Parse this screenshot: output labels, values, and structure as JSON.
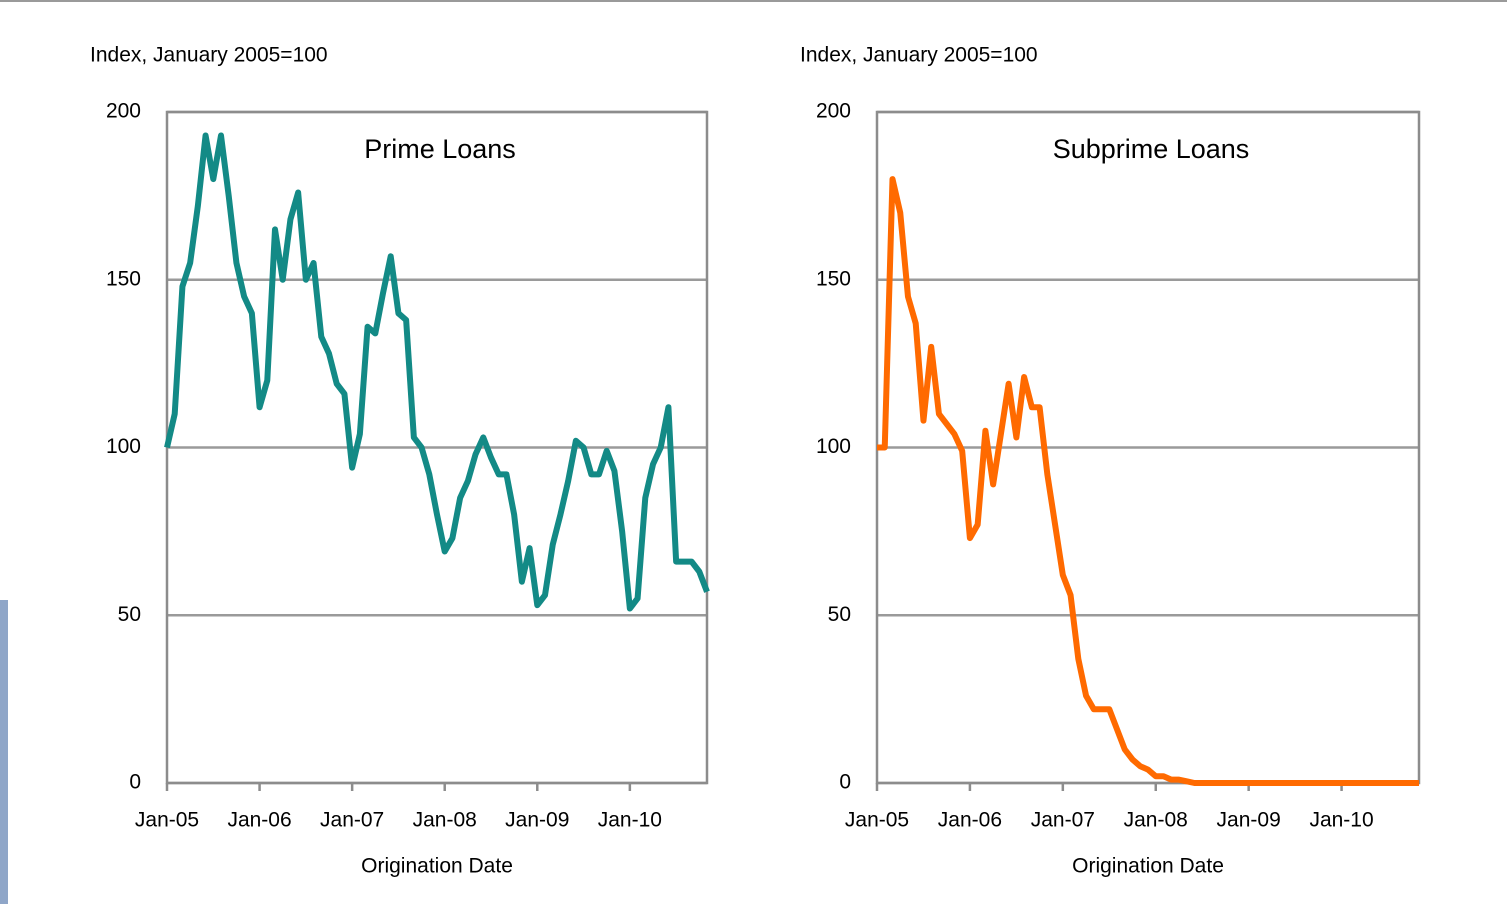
{
  "chart_data": [
    {
      "type": "line",
      "title": "Prime Loans",
      "y_label": "Index, January 2005=100",
      "x_label": "Origination Date",
      "color": "#138a86",
      "x": [
        "2005-01",
        "2005-02",
        "2005-03",
        "2005-04",
        "2005-05",
        "2005-06",
        "2005-07",
        "2005-08",
        "2005-09",
        "2005-10",
        "2005-11",
        "2005-12",
        "2006-01",
        "2006-02",
        "2006-03",
        "2006-04",
        "2006-05",
        "2006-06",
        "2006-07",
        "2006-08",
        "2006-09",
        "2006-10",
        "2006-11",
        "2006-12",
        "2007-01",
        "2007-02",
        "2007-03",
        "2007-04",
        "2007-05",
        "2007-06",
        "2007-07",
        "2007-08",
        "2007-09",
        "2007-10",
        "2007-11",
        "2007-12",
        "2008-01",
        "2008-02",
        "2008-03",
        "2008-04",
        "2008-05",
        "2008-06",
        "2008-07",
        "2008-08",
        "2008-09",
        "2008-10",
        "2008-11",
        "2008-12",
        "2009-01",
        "2009-02",
        "2009-03",
        "2009-04",
        "2009-05",
        "2009-06",
        "2009-07",
        "2009-08",
        "2009-09",
        "2009-10",
        "2009-11",
        "2009-12",
        "2010-01",
        "2010-02",
        "2010-03",
        "2010-04",
        "2010-05",
        "2010-06",
        "2010-07",
        "2010-08",
        "2010-09",
        "2010-10",
        "2010-11"
      ],
      "values": [
        100,
        110,
        148,
        155,
        172,
        193,
        180,
        193,
        175,
        155,
        145,
        140,
        112,
        120,
        165,
        150,
        168,
        176,
        150,
        155,
        133,
        128,
        119,
        116,
        94,
        104,
        136,
        134,
        146,
        157,
        140,
        138,
        103,
        100,
        92,
        80,
        69,
        73,
        85,
        90,
        98,
        103,
        97,
        92,
        92,
        80,
        60,
        70,
        53,
        56,
        71,
        80,
        90,
        102,
        100,
        92,
        92,
        99,
        93,
        75,
        52,
        55,
        85,
        95,
        100,
        112,
        66,
        66,
        66,
        63,
        57
      ],
      "xlim": [
        "2005-01",
        "2010-11"
      ],
      "xticks": [
        {
          "value": "2005-01",
          "label": "Jan-05"
        },
        {
          "value": "2006-01",
          "label": "Jan-06"
        },
        {
          "value": "2007-01",
          "label": "Jan-07"
        },
        {
          "value": "2008-01",
          "label": "Jan-08"
        },
        {
          "value": "2009-01",
          "label": "Jan-09"
        },
        {
          "value": "2010-01",
          "label": "Jan-10"
        }
      ],
      "ylim": [
        0,
        200
      ],
      "yticks": [
        0,
        50,
        100,
        150,
        200
      ],
      "grid": true
    },
    {
      "type": "line",
      "title": "Subprime Loans",
      "y_label": "Index, January 2005=100",
      "x_label": "Origination Date",
      "color": "#ff6a00",
      "x": [
        "2005-01",
        "2005-02",
        "2005-03",
        "2005-04",
        "2005-05",
        "2005-06",
        "2005-07",
        "2005-08",
        "2005-09",
        "2005-10",
        "2005-11",
        "2005-12",
        "2006-01",
        "2006-02",
        "2006-03",
        "2006-04",
        "2006-05",
        "2006-06",
        "2006-07",
        "2006-08",
        "2006-09",
        "2006-10",
        "2006-11",
        "2006-12",
        "2007-01",
        "2007-02",
        "2007-03",
        "2007-04",
        "2007-05",
        "2007-06",
        "2007-07",
        "2007-08",
        "2007-09",
        "2007-10",
        "2007-11",
        "2007-12",
        "2008-01",
        "2008-02",
        "2008-03",
        "2008-04",
        "2008-05",
        "2008-06",
        "2008-07",
        "2008-08",
        "2008-09",
        "2008-10",
        "2008-11",
        "2008-12",
        "2009-01",
        "2009-02",
        "2009-03",
        "2009-04",
        "2009-05",
        "2009-06",
        "2009-07",
        "2009-08",
        "2009-09",
        "2009-10",
        "2009-11",
        "2009-12",
        "2010-01",
        "2010-02",
        "2010-03",
        "2010-04",
        "2010-05",
        "2010-06",
        "2010-07",
        "2010-08",
        "2010-09",
        "2010-10",
        "2010-11"
      ],
      "values": [
        100,
        100,
        180,
        170,
        145,
        137,
        108,
        130,
        110,
        107,
        104,
        99,
        73,
        77,
        105,
        89,
        104,
        119,
        103,
        121,
        112,
        112,
        92,
        77,
        62,
        56,
        37,
        26,
        22,
        22,
        22,
        16,
        10,
        7,
        5,
        4,
        2,
        2,
        1,
        1,
        0.5,
        0,
        0,
        0,
        0,
        0,
        0,
        0,
        0,
        0,
        0,
        0,
        0,
        0,
        0,
        0,
        0,
        0,
        0,
        0,
        0,
        0,
        0,
        0,
        0,
        0,
        0,
        0,
        0,
        0,
        0
      ],
      "xlim": [
        "2005-01",
        "2010-11"
      ],
      "xticks": [
        {
          "value": "2005-01",
          "label": "Jan-05"
        },
        {
          "value": "2006-01",
          "label": "Jan-06"
        },
        {
          "value": "2007-01",
          "label": "Jan-07"
        },
        {
          "value": "2008-01",
          "label": "Jan-08"
        },
        {
          "value": "2009-01",
          "label": "Jan-09"
        },
        {
          "value": "2010-01",
          "label": "Jan-10"
        }
      ],
      "ylim": [
        0,
        200
      ],
      "yticks": [
        0,
        50,
        100,
        150,
        200
      ],
      "grid": true
    }
  ]
}
